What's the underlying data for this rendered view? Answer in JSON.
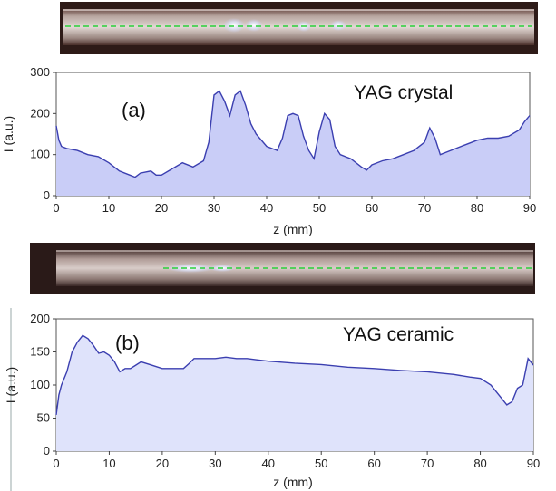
{
  "chart_data": [
    {
      "type": "area",
      "panel_label": "(a)",
      "annotation": "YAG crystal",
      "xlabel": "z (mm)",
      "ylabel": "I (a.u.)",
      "xlim": [
        0,
        90
      ],
      "ylim": [
        0,
        300
      ],
      "xticks": [
        0,
        10,
        20,
        30,
        40,
        50,
        60,
        70,
        80,
        90
      ],
      "yticks": [
        0,
        100,
        200,
        300
      ],
      "grid": false,
      "line_color": "#3b3fb0",
      "fill_color": "#c9cdf7",
      "x": [
        0,
        0.5,
        1,
        2,
        4,
        6,
        8,
        10,
        12,
        14,
        15,
        16,
        18,
        19,
        20,
        22,
        24,
        26,
        28,
        29,
        30,
        31,
        32,
        33,
        34,
        35,
        36,
        37,
        38,
        40,
        42,
        43,
        44,
        45,
        46,
        47,
        48,
        49,
        50,
        51,
        52,
        53,
        54,
        56,
        58,
        59,
        60,
        62,
        64,
        66,
        68,
        70,
        71,
        72,
        73,
        75,
        78,
        80,
        82,
        84,
        86,
        88,
        89,
        90
      ],
      "y": [
        170,
        135,
        120,
        115,
        110,
        100,
        95,
        80,
        60,
        50,
        45,
        55,
        60,
        50,
        50,
        65,
        80,
        70,
        85,
        130,
        245,
        255,
        230,
        195,
        245,
        255,
        220,
        175,
        150,
        120,
        110,
        140,
        195,
        200,
        195,
        145,
        110,
        90,
        155,
        200,
        185,
        120,
        100,
        90,
        70,
        62,
        75,
        85,
        90,
        100,
        110,
        130,
        165,
        140,
        100,
        110,
        125,
        135,
        140,
        140,
        145,
        160,
        180,
        195
      ]
    },
    {
      "type": "area",
      "panel_label": "(b)",
      "annotation": "YAG ceramic",
      "xlabel": "z (mm)",
      "ylabel": "I (a.u.)",
      "xlim": [
        0,
        90
      ],
      "ylim": [
        0,
        200
      ],
      "xticks": [
        0,
        10,
        20,
        30,
        40,
        50,
        60,
        70,
        80,
        90
      ],
      "yticks": [
        0,
        50,
        100,
        150,
        200
      ],
      "grid": false,
      "line_color": "#3b3fb0",
      "fill_color": "#dfe3fb",
      "x": [
        0,
        0.5,
        1,
        2,
        3,
        4,
        5,
        6,
        7,
        8,
        9,
        10,
        11,
        12,
        13,
        14,
        15,
        16,
        18,
        20,
        22,
        24,
        25,
        26,
        28,
        30,
        32,
        34,
        36,
        38,
        40,
        45,
        50,
        55,
        60,
        65,
        70,
        75,
        78,
        80,
        82,
        84,
        85,
        86,
        87,
        88,
        89,
        90
      ],
      "y": [
        55,
        85,
        100,
        120,
        150,
        165,
        175,
        170,
        160,
        148,
        150,
        145,
        135,
        120,
        125,
        125,
        130,
        135,
        130,
        125,
        125,
        125,
        132,
        140,
        140,
        140,
        142,
        140,
        140,
        138,
        136,
        133,
        131,
        127,
        125,
        122,
        120,
        116,
        112,
        110,
        100,
        80,
        70,
        75,
        95,
        100,
        140,
        130
      ]
    }
  ],
  "colors": {
    "line": "#3b3fb0",
    "fill_a": "#c9cdf7",
    "fill_b": "#dfe3fb",
    "beam_dash": "#29d13a"
  },
  "photos": [
    {
      "name": "crystal-rod-photo",
      "icon": "glass-rod-image"
    },
    {
      "name": "ceramic-rod-photo",
      "icon": "glass-rod-image"
    }
  ]
}
